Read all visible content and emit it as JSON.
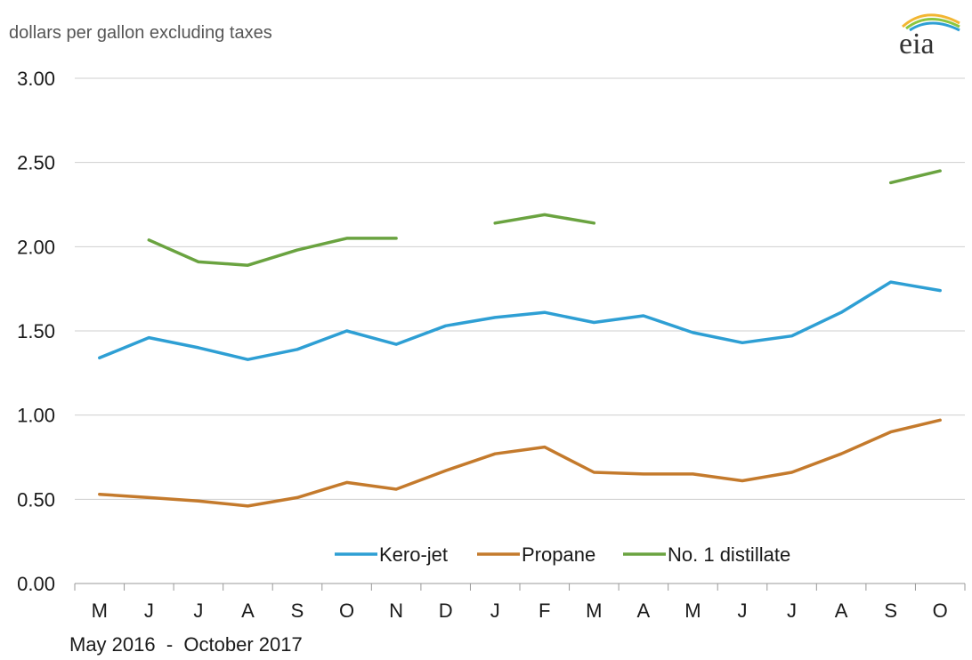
{
  "header": {
    "unit_label": "dollars per gallon  excluding taxes",
    "logo_text": "eia"
  },
  "footer": {
    "date_range": "May 2016  -  October 2017"
  },
  "colors": {
    "kero_jet": "#2e9fd4",
    "propane": "#c47a2c",
    "distillate": "#6aa340",
    "grid": "#cfcfcf",
    "axis": "#999999"
  },
  "chart_data": {
    "type": "line",
    "categories": [
      "M",
      "J",
      "J",
      "A",
      "S",
      "O",
      "N",
      "D",
      "J",
      "F",
      "M",
      "A",
      "M",
      "J",
      "J",
      "A",
      "S",
      "O"
    ],
    "ylim": [
      0,
      3
    ],
    "yticks": [
      "0.00",
      "0.50",
      "1.00",
      "1.50",
      "2.00",
      "2.50",
      "3.00"
    ],
    "ytick_values": [
      0,
      0.5,
      1.0,
      1.5,
      2.0,
      2.5,
      3.0
    ],
    "grid": true,
    "legend_position": "bottom-center",
    "series": [
      {
        "name": "Kero-jet",
        "values": [
          1.34,
          1.46,
          1.4,
          1.33,
          1.39,
          1.5,
          1.42,
          1.53,
          1.58,
          1.61,
          1.55,
          1.59,
          1.49,
          1.43,
          1.47,
          1.61,
          1.79,
          1.74
        ]
      },
      {
        "name": "Propane",
        "values": [
          0.53,
          0.51,
          0.49,
          0.46,
          0.51,
          0.6,
          0.56,
          0.67,
          0.77,
          0.81,
          0.66,
          0.65,
          0.65,
          0.61,
          0.66,
          0.77,
          0.9,
          0.97
        ]
      },
      {
        "name": "No. 1 distillate",
        "values": [
          null,
          2.04,
          1.91,
          1.89,
          1.98,
          2.05,
          2.05,
          null,
          2.14,
          2.19,
          2.14,
          null,
          null,
          null,
          null,
          null,
          2.38,
          2.45
        ]
      }
    ]
  }
}
